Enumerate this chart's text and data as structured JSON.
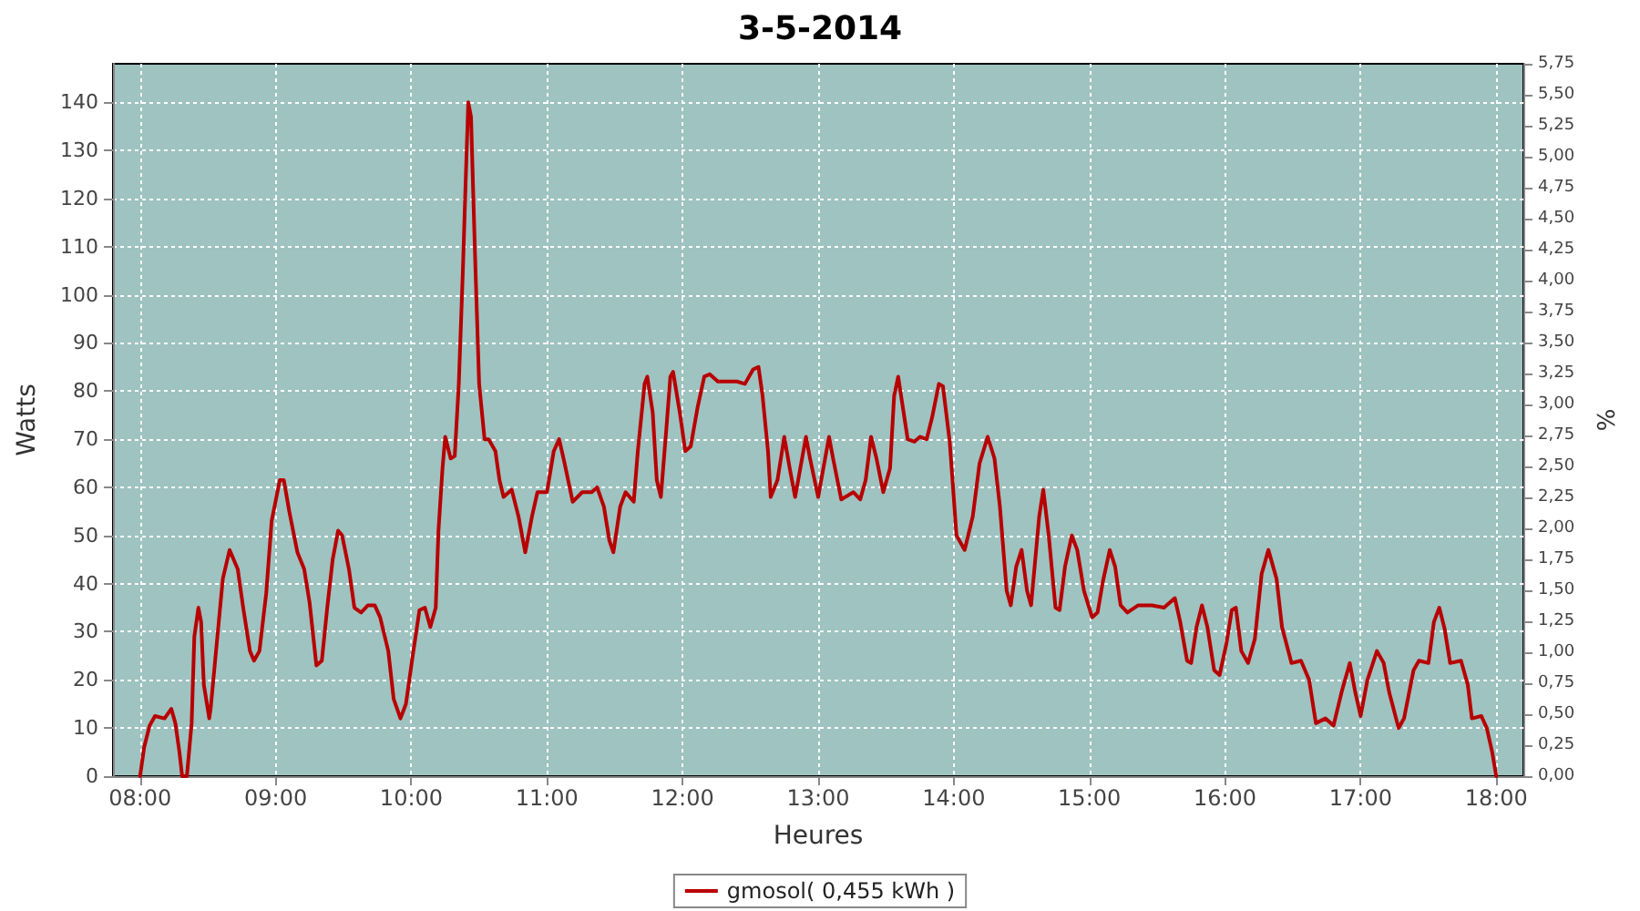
{
  "chart_data": {
    "type": "line",
    "title": "3-5-2014",
    "xlabel": "Heures",
    "ylabel": "Watts",
    "y2label": "%",
    "xlim": [
      7.8,
      18.2
    ],
    "xticks": [
      {
        "value": 8,
        "label": "08:00"
      },
      {
        "value": 9,
        "label": "09:00"
      },
      {
        "value": 10,
        "label": "10:00"
      },
      {
        "value": 11,
        "label": "11:00"
      },
      {
        "value": 12,
        "label": "12:00"
      },
      {
        "value": 13,
        "label": "13:00"
      },
      {
        "value": 14,
        "label": "14:00"
      },
      {
        "value": 15,
        "label": "15:00"
      },
      {
        "value": 16,
        "label": "16:00"
      },
      {
        "value": 17,
        "label": "17:00"
      },
      {
        "value": 18,
        "label": "18:00"
      }
    ],
    "ylim": [
      0,
      148
    ],
    "yticks": [
      0,
      10,
      20,
      30,
      40,
      50,
      60,
      70,
      80,
      90,
      100,
      110,
      120,
      130,
      140
    ],
    "y2lim": [
      0,
      5.75
    ],
    "y2ticks": [
      {
        "value": 0,
        "label": "0,00"
      },
      {
        "value": 0.25,
        "label": "0,25"
      },
      {
        "value": 0.5,
        "label": "0,50"
      },
      {
        "value": 0.75,
        "label": "0,75"
      },
      {
        "value": 1,
        "label": "1,00"
      },
      {
        "value": 1.25,
        "label": "1,25"
      },
      {
        "value": 1.5,
        "label": "1,50"
      },
      {
        "value": 1.75,
        "label": "1,75"
      },
      {
        "value": 2,
        "label": "2,00"
      },
      {
        "value": 2.25,
        "label": "2,25"
      },
      {
        "value": 2.5,
        "label": "2,50"
      },
      {
        "value": 2.75,
        "label": "2,75"
      },
      {
        "value": 3,
        "label": "3,00"
      },
      {
        "value": 3.25,
        "label": "3,25"
      },
      {
        "value": 3.5,
        "label": "3,50"
      },
      {
        "value": 3.75,
        "label": "3,75"
      },
      {
        "value": 4,
        "label": "4,00"
      },
      {
        "value": 4.25,
        "label": "4,25"
      },
      {
        "value": 4.5,
        "label": "4,50"
      },
      {
        "value": 4.75,
        "label": "4,75"
      },
      {
        "value": 5,
        "label": "5,00"
      },
      {
        "value": 5.25,
        "label": "5,25"
      },
      {
        "value": 5.5,
        "label": "5,50"
      },
      {
        "value": 5.75,
        "label": "5,75"
      }
    ],
    "grid": true,
    "legend": "bottom",
    "marker": "none",
    "line_style": "solid",
    "series": [
      {
        "name": "gmosol( 0,455 kWh )",
        "color": "#b80000",
        "x": [
          8.0,
          8.03,
          8.07,
          8.11,
          8.18,
          8.23,
          8.26,
          8.29,
          8.31,
          8.345,
          8.38,
          8.4,
          8.43,
          8.45,
          8.47,
          8.51,
          8.52,
          8.56,
          8.61,
          8.66,
          8.72,
          8.76,
          8.81,
          8.84,
          8.88,
          8.93,
          8.97,
          9.03,
          9.06,
          9.1,
          9.16,
          9.21,
          9.25,
          9.3,
          9.34,
          9.38,
          9.42,
          9.46,
          9.49,
          9.54,
          9.58,
          9.63,
          9.68,
          9.73,
          9.77,
          9.83,
          9.87,
          9.92,
          9.96,
          10.01,
          10.06,
          10.1,
          10.14,
          10.18,
          10.2,
          10.23,
          10.25,
          10.29,
          10.32,
          10.35,
          10.38,
          10.4,
          10.42,
          10.44,
          10.47,
          10.5,
          10.54,
          10.57,
          10.62,
          10.65,
          10.68,
          10.74,
          10.79,
          10.84,
          10.89,
          10.93,
          11.0,
          11.05,
          11.09,
          11.13,
          11.19,
          11.26,
          11.33,
          11.37,
          11.42,
          11.46,
          11.49,
          11.54,
          11.58,
          11.64,
          11.67,
          11.72,
          11.74,
          11.78,
          11.81,
          11.84,
          11.88,
          11.91,
          11.93,
          11.98,
          12.02,
          12.06,
          12.11,
          12.16,
          12.2,
          12.26,
          12.34,
          12.4,
          12.46,
          12.52,
          12.56,
          12.59,
          12.63,
          12.65,
          12.7,
          12.75,
          12.79,
          12.83,
          12.91,
          12.94,
          13.0,
          13.08,
          13.11,
          13.17,
          13.26,
          13.31,
          13.35,
          13.39,
          13.43,
          13.48,
          13.53,
          13.56,
          13.59,
          13.66,
          13.71,
          13.75,
          13.8,
          13.84,
          13.89,
          13.92,
          13.97,
          14.02,
          14.08,
          14.14,
          14.19,
          14.25,
          14.3,
          14.34,
          14.39,
          14.42,
          14.46,
          14.5,
          14.54,
          14.57,
          14.63,
          14.66,
          14.7,
          14.75,
          14.78,
          14.82,
          14.87,
          14.91,
          14.96,
          15.02,
          15.06,
          15.1,
          15.15,
          15.19,
          15.23,
          15.28,
          15.36,
          15.46,
          15.55,
          15.63,
          15.67,
          15.72,
          15.75,
          15.79,
          15.83,
          15.87,
          15.92,
          15.96,
          16.01,
          16.05,
          16.08,
          16.12,
          16.17,
          16.22,
          16.27,
          16.32,
          16.38,
          16.42,
          16.49,
          16.56,
          16.62,
          16.67,
          16.74,
          16.8,
          16.86,
          16.92,
          16.96,
          17.0,
          17.05,
          17.12,
          17.17,
          17.21,
          17.28,
          17.32,
          17.39,
          17.43,
          17.5,
          17.54,
          17.58,
          17.62,
          17.66,
          17.74,
          17.79,
          17.82,
          17.89,
          17.93,
          17.97,
          18.0
        ],
        "values": [
          0,
          6,
          10.5,
          12.5,
          12,
          14,
          11,
          5,
          0,
          0,
          11,
          29,
          35,
          32,
          19,
          12,
          14,
          26,
          41,
          47,
          43,
          35,
          26,
          24,
          26,
          38,
          53,
          61.5,
          61.5,
          55,
          46.5,
          43,
          36,
          23,
          24,
          35,
          45,
          51,
          50,
          43,
          35,
          34,
          35.5,
          35.5,
          33,
          26,
          16,
          12,
          15,
          25,
          34.5,
          35,
          31,
          35,
          51,
          64,
          70.5,
          66,
          66.5,
          81.5,
          105,
          123,
          140,
          137,
          108,
          81.5,
          70,
          70,
          67.5,
          61.5,
          58,
          59.5,
          54,
          46.5,
          54,
          59,
          59,
          67.5,
          70,
          65,
          57,
          59,
          59,
          60,
          56,
          49,
          46.5,
          56,
          59,
          57,
          67.5,
          81.5,
          83,
          75.5,
          61.5,
          58,
          72,
          83,
          84,
          75.5,
          67.5,
          68.5,
          76.5,
          83,
          83.5,
          82,
          82,
          82,
          81.5,
          84.5,
          85,
          79,
          67.5,
          58,
          61.5,
          70.5,
          64,
          58,
          70.5,
          66,
          58,
          70.5,
          66,
          57.5,
          59,
          57.5,
          61.5,
          70.5,
          66,
          59,
          64,
          79,
          83,
          70,
          69.5,
          70.5,
          70,
          74.5,
          81.5,
          81,
          69.5,
          50,
          47,
          54,
          65,
          70.5,
          66,
          56,
          38.5,
          35.5,
          43.5,
          47,
          38.5,
          35.5,
          54,
          59.5,
          50,
          35,
          34.5,
          43.5,
          50,
          47,
          38.5,
          33,
          34,
          40.5,
          47,
          43.5,
          35.5,
          34,
          35.5,
          35.5,
          35,
          37,
          32,
          24,
          23.5,
          31,
          35.5,
          31,
          22,
          21,
          27.5,
          34.5,
          35,
          26,
          23.5,
          28.5,
          42,
          47,
          41,
          31,
          23.5,
          24,
          20,
          11,
          12,
          10.5,
          17.5,
          23.5,
          17.5,
          12.5,
          20,
          26,
          23.5,
          17.5,
          10,
          12,
          22,
          24,
          23.5,
          32,
          35,
          30.5,
          23.5,
          24,
          19,
          12,
          12.5,
          10,
          5,
          0
        ]
      }
    ]
  }
}
